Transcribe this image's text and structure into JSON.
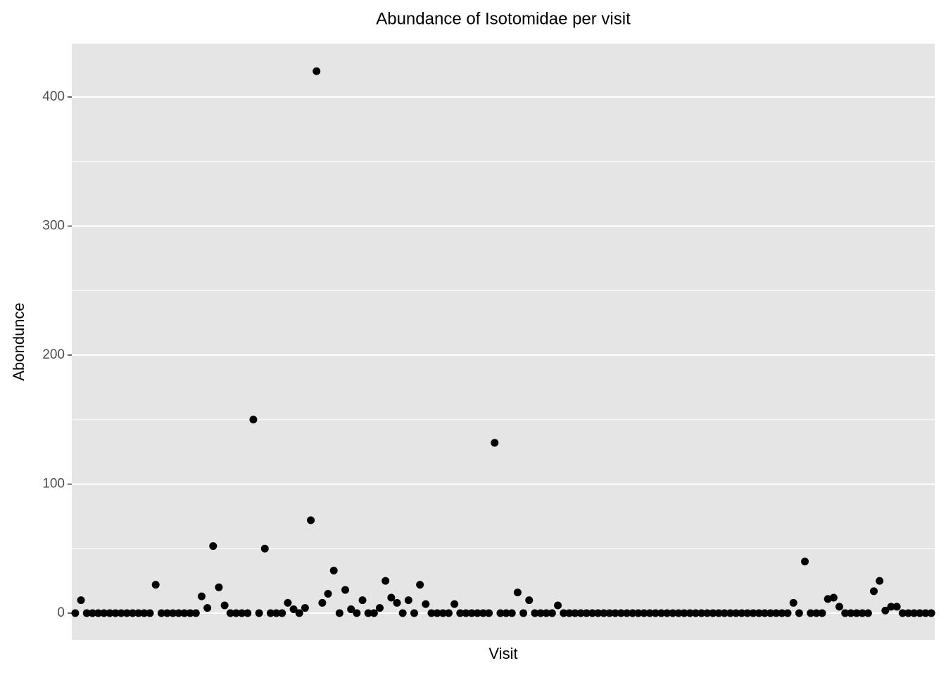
{
  "chart_data": {
    "type": "scatter",
    "title": "Abundance of Isotomidae per visit",
    "xlabel": "Visit",
    "ylabel": "Abondunce",
    "values": [
      0,
      10,
      0,
      0,
      0,
      0,
      0,
      0,
      0,
      0,
      0,
      0,
      0,
      0,
      22,
      0,
      0,
      0,
      0,
      0,
      0,
      0,
      13,
      4,
      52,
      20,
      6,
      0,
      0,
      0,
      0,
      150,
      0,
      50,
      0,
      0,
      0,
      8,
      3,
      0,
      4,
      72,
      420,
      8,
      15,
      33,
      0,
      18,
      3,
      0,
      10,
      0,
      0,
      4,
      25,
      12,
      8,
      0,
      10,
      0,
      22,
      7,
      0,
      0,
      0,
      0,
      7,
      0,
      0,
      0,
      0,
      0,
      0,
      132,
      0,
      0,
      0,
      16,
      0,
      10,
      0,
      0,
      0,
      0,
      6,
      0,
      0,
      0,
      0,
      0,
      0,
      0,
      0,
      0,
      0,
      0,
      0,
      0,
      0,
      0,
      0,
      0,
      0,
      0,
      0,
      0,
      0,
      0,
      0,
      0,
      0,
      0,
      0,
      0,
      0,
      0,
      0,
      0,
      0,
      0,
      0,
      0,
      0,
      0,
      0,
      8,
      0,
      40,
      0,
      0,
      0,
      11,
      12,
      5,
      0,
      0,
      0,
      0,
      0,
      17,
      25,
      2,
      5,
      5,
      0,
      0,
      0,
      0,
      0,
      0
    ],
    "color": "#000000",
    "ylim": [
      -20.7,
      441.4
    ],
    "yticks": [
      0,
      100,
      200,
      300,
      400
    ],
    "yminor_ticks": [
      50,
      150,
      250,
      350
    ],
    "grid": true
  }
}
